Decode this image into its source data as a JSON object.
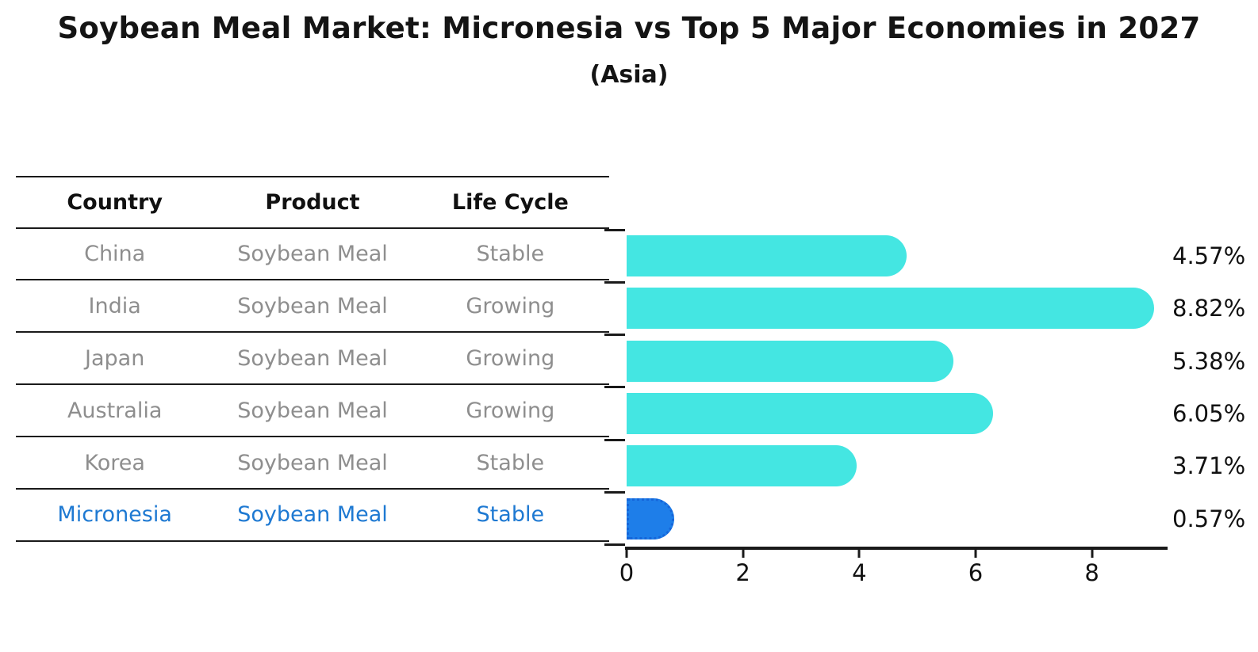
{
  "header": {
    "title": "Soybean Meal Market: Micronesia vs Top 5 Major Economies in 2027",
    "subtitle": "(Asia)"
  },
  "table": {
    "columns": [
      "Country",
      "Product",
      "Life Cycle"
    ],
    "rows": [
      {
        "country": "China",
        "product": "Soybean Meal",
        "life_cycle": "Stable",
        "highlight": false
      },
      {
        "country": "India",
        "product": "Soybean Meal",
        "life_cycle": "Growing",
        "highlight": false
      },
      {
        "country": "Japan",
        "product": "Soybean Meal",
        "life_cycle": "Growing",
        "highlight": false
      },
      {
        "country": "Australia",
        "product": "Soybean Meal",
        "life_cycle": "Growing",
        "highlight": false
      },
      {
        "country": "Korea",
        "product": "Soybean Meal",
        "life_cycle": "Stable",
        "highlight": false
      },
      {
        "country": "Micronesia",
        "product": "Soybean Meal",
        "life_cycle": "Stable",
        "highlight": true
      }
    ],
    "highlight_text_color": "#1E79D2"
  },
  "chart_data": {
    "type": "bar",
    "orientation": "horizontal",
    "title": "Soybean Meal Market: Micronesia vs Top 5 Major Economies in 2027",
    "subtitle": "(Asia)",
    "categories": [
      "China",
      "India",
      "Japan",
      "Australia",
      "Korea",
      "Micronesia"
    ],
    "values": [
      4.57,
      8.82,
      5.38,
      6.05,
      3.71,
      0.57
    ],
    "value_labels": [
      "4.57%",
      "8.82%",
      "5.38%",
      "6.05%",
      "3.71%",
      "0.57%"
    ],
    "unit": "%",
    "x_ticks": [
      0,
      2,
      4,
      6,
      8
    ],
    "xlim": [
      0,
      9.26
    ],
    "grid": false,
    "legend": false,
    "highlight_index": 5,
    "colors": {
      "bar_default": "#44E6E2",
      "bar_highlight": "#1E7EE9",
      "bar_highlight_border": "#1565D9",
      "axis": "#1A1A1A",
      "value_label": "#111111"
    }
  }
}
